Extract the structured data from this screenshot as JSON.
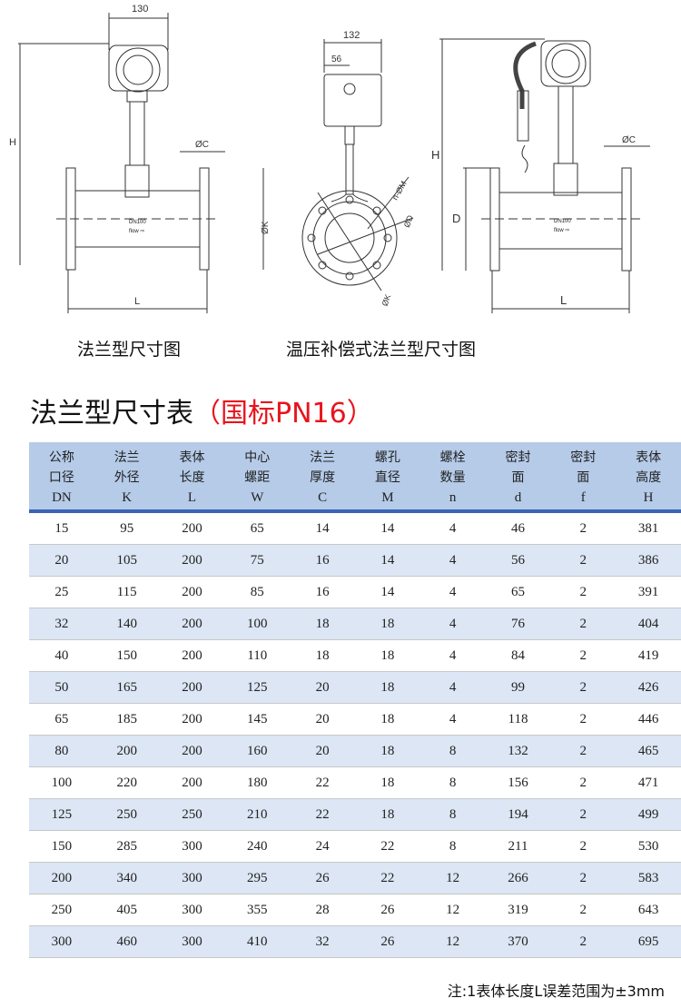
{
  "drawings": {
    "flange": {
      "caption": "法兰型尺寸图",
      "dims": {
        "width": "130",
        "height": "H",
        "flange_thickness": "ØC",
        "flange_od": "ØK",
        "length": "L",
        "body_label": "DN100",
        "flow_label": "flow ⇨"
      }
    },
    "side": {
      "dims": {
        "width": "132",
        "offset": "56",
        "bolt_holes": "n-ØM",
        "seal": "ØD",
        "flange_od": "ØK"
      }
    },
    "compensated": {
      "caption": "温压补偿式法兰型尺寸图",
      "dims": {
        "height": "H",
        "flange_thickness": "ØC",
        "diameter": "D",
        "length": "L",
        "body_label": "DN100",
        "flow_label": "flow ⇨"
      }
    }
  },
  "table_title": {
    "main": "法兰型尺寸表",
    "sub": "（国标PN16）"
  },
  "table": {
    "headers": [
      {
        "name": "公称口径",
        "sym": "DN"
      },
      {
        "name": "法兰外径",
        "sym": "K"
      },
      {
        "name": "表体长度",
        "sym": "L"
      },
      {
        "name": "中心螺距",
        "sym": "W"
      },
      {
        "name": "法兰厚度",
        "sym": "C"
      },
      {
        "name": "螺孔直径",
        "sym": "M"
      },
      {
        "name": "螺栓数量",
        "sym": "n"
      },
      {
        "name": "密封面",
        "sym": "d"
      },
      {
        "name": "密封面",
        "sym": "f"
      },
      {
        "name": "表体高度",
        "sym": "H"
      }
    ],
    "rows": [
      [
        "15",
        "95",
        "200",
        "65",
        "14",
        "14",
        "4",
        "46",
        "2",
        "381"
      ],
      [
        "20",
        "105",
        "200",
        "75",
        "16",
        "14",
        "4",
        "56",
        "2",
        "386"
      ],
      [
        "25",
        "115",
        "200",
        "85",
        "16",
        "14",
        "4",
        "65",
        "2",
        "391"
      ],
      [
        "32",
        "140",
        "200",
        "100",
        "18",
        "18",
        "4",
        "76",
        "2",
        "404"
      ],
      [
        "40",
        "150",
        "200",
        "110",
        "18",
        "18",
        "4",
        "84",
        "2",
        "419"
      ],
      [
        "50",
        "165",
        "200",
        "125",
        "20",
        "18",
        "4",
        "99",
        "2",
        "426"
      ],
      [
        "65",
        "185",
        "200",
        "145",
        "20",
        "18",
        "4",
        "118",
        "2",
        "446"
      ],
      [
        "80",
        "200",
        "200",
        "160",
        "20",
        "18",
        "8",
        "132",
        "2",
        "465"
      ],
      [
        "100",
        "220",
        "200",
        "180",
        "22",
        "18",
        "8",
        "156",
        "2",
        "471"
      ],
      [
        "125",
        "250",
        "250",
        "210",
        "22",
        "18",
        "8",
        "194",
        "2",
        "499"
      ],
      [
        "150",
        "285",
        "300",
        "240",
        "24",
        "22",
        "8",
        "211",
        "2",
        "530"
      ],
      [
        "200",
        "340",
        "300",
        "295",
        "26",
        "22",
        "12",
        "266",
        "2",
        "583"
      ],
      [
        "250",
        "405",
        "300",
        "355",
        "28",
        "26",
        "12",
        "319",
        "2",
        "643"
      ],
      [
        "300",
        "460",
        "300",
        "410",
        "32",
        "26",
        "12",
        "370",
        "2",
        "695"
      ]
    ]
  },
  "note": "注:1表体长度L误差范围为±3mm",
  "colors": {
    "header_bg": "#b5cbe8",
    "header_rule": "#3a65b6",
    "stripe": "#dce6f4",
    "accent_red": "#e8141c"
  }
}
